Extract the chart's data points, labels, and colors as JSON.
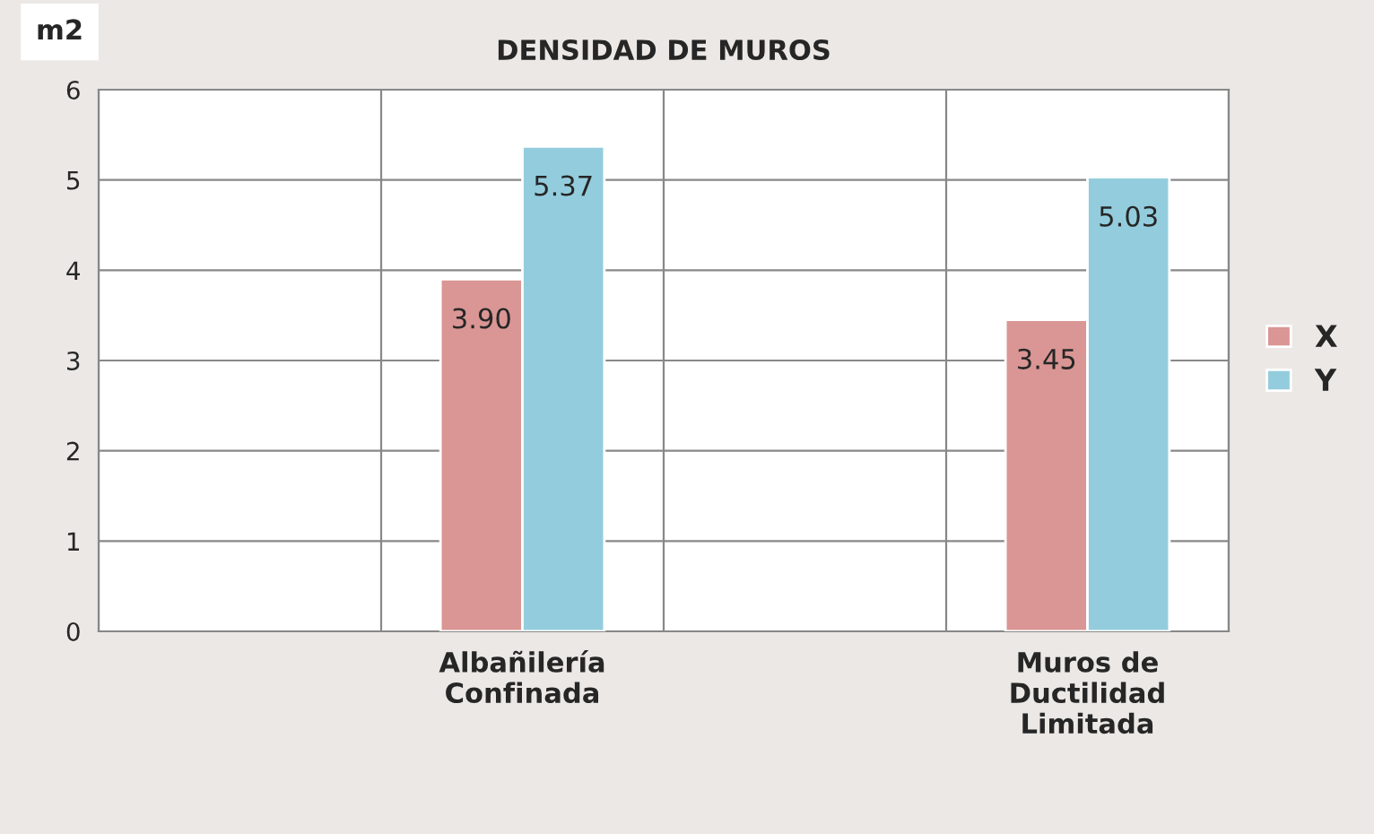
{
  "chart_data": {
    "type": "bar",
    "title": "DENSIDAD DE MUROS",
    "annotations": [
      "m2"
    ],
    "categories": [
      null,
      "Albañilería\nConfinada",
      null,
      "Muros de\nDuctilidad\nLimitada"
    ],
    "series": [
      {
        "name": "X",
        "color": "#d99694",
        "values": [
          null,
          3.9,
          null,
          3.45
        ]
      },
      {
        "name": "Y",
        "color": "#93cddd",
        "values": [
          null,
          5.37,
          null,
          5.03
        ]
      }
    ],
    "value_labels": [
      [
        null,
        "3.90",
        null,
        "3.45"
      ],
      [
        null,
        "5.37",
        null,
        "5.03"
      ]
    ],
    "ylim": [
      0,
      6
    ],
    "yticks": [
      0,
      1,
      2,
      3,
      4,
      5,
      6
    ],
    "grid": true,
    "legend": "right"
  }
}
